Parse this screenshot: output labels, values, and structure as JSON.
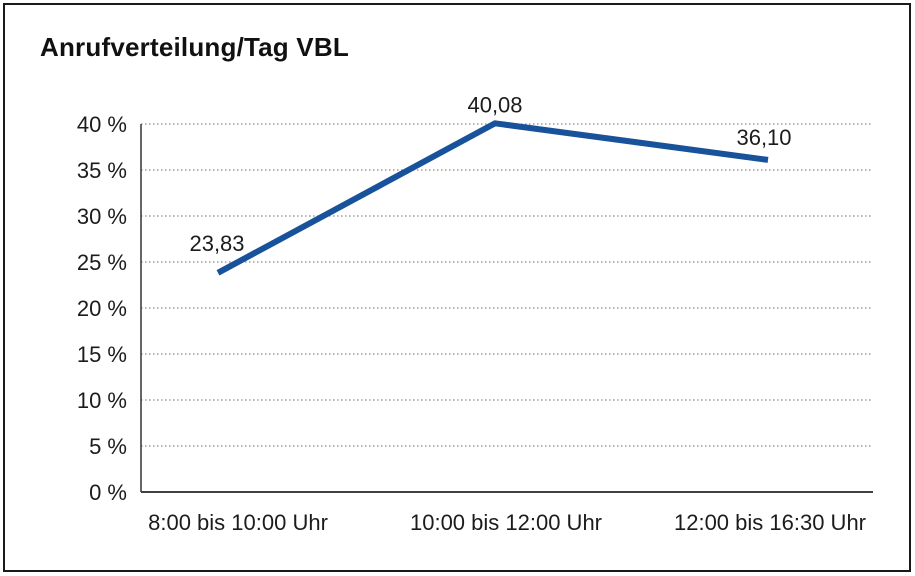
{
  "chart_data": {
    "type": "line",
    "title": "Anrufverteilung/Tag VBL",
    "categories": [
      "8:00 bis 10:00 Uhr",
      "10:00 bis 12:00 Uhr",
      "12:00 bis 16:30 Uhr"
    ],
    "values": [
      23.83,
      40.08,
      36.1
    ],
    "data_labels": [
      "23,83",
      "40,08",
      "36,10"
    ],
    "xlabel": "",
    "ylabel": "",
    "ylim": [
      0,
      40
    ],
    "ytick_step": 5,
    "ytick_labels": [
      "0 %",
      "5 %",
      "10 %",
      "15 %",
      "20 %",
      "25 %",
      "30 %",
      "35 %",
      "40 %"
    ],
    "grid": "horizontal-dotted",
    "legend": "none",
    "colors": {
      "line": "#17529b",
      "axis": "#404040",
      "grid": "#8a8a8a",
      "text": "#1c1c1c",
      "frame_border": "#1a1a1a",
      "background": "#ffffff"
    }
  }
}
